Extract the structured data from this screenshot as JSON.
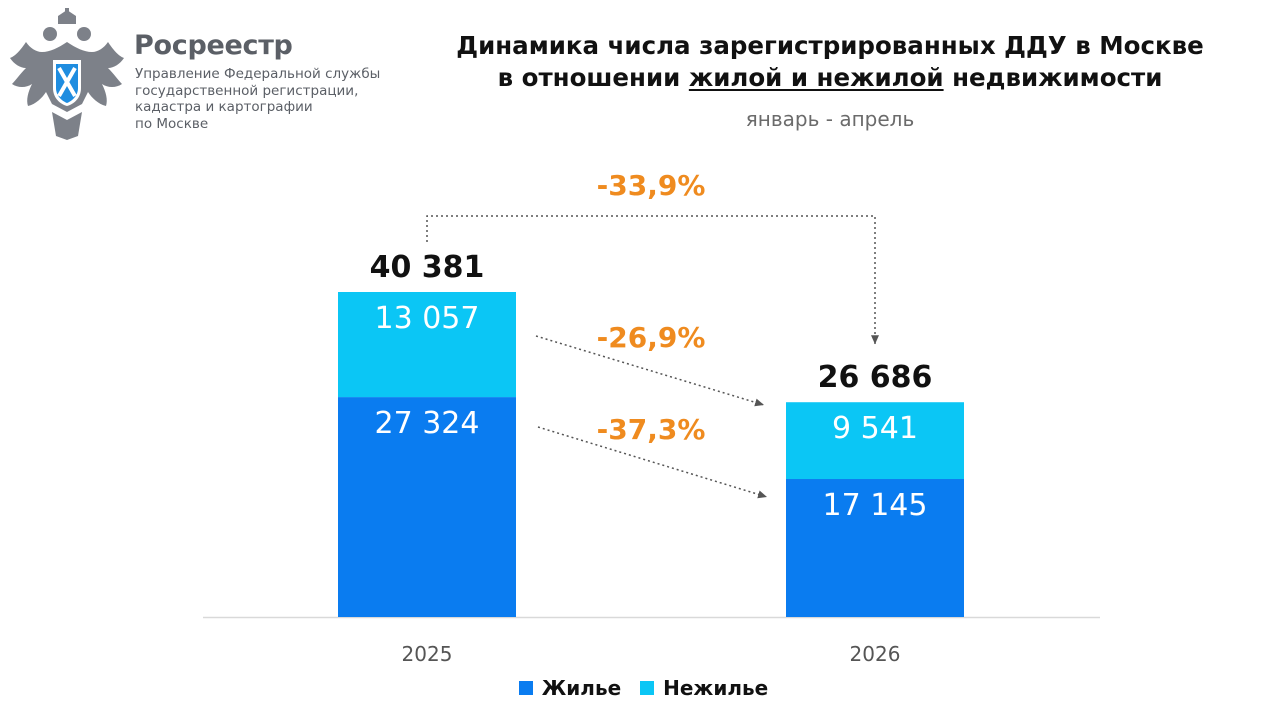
{
  "header": {
    "org_name": "Росреестр",
    "org_sub": [
      "Управление Федеральной службы",
      "государственной регистрации,",
      "кадастра и картографии",
      "по Москве"
    ],
    "title_line1": "Динамика числа зарегистрированных ДДУ в Москве",
    "title_line2_pre": "в отношении ",
    "title_line2_underlined": "жилой и нежилой",
    "title_line2_post": " недвижимости",
    "subtitle": "январь - апрель"
  },
  "colors": {
    "residential": "#0a7cf0",
    "nonresidential": "#0bc6f5",
    "change_labels": "#ef8b1f",
    "text": "#111111",
    "muted": "#5b5f66"
  },
  "chart_data": {
    "type": "bar",
    "stacked": true,
    "categories": [
      "2025",
      "2026"
    ],
    "series": [
      {
        "name": "Жилье",
        "values": [
          27324,
          17145
        ],
        "labels": [
          "27 324",
          "17 145"
        ]
      },
      {
        "name": "Нежилье",
        "values": [
          13057,
          9541
        ],
        "labels": [
          "13 057",
          "9 541"
        ]
      }
    ],
    "totals": [
      40381,
      26686
    ],
    "total_labels": [
      "40 381",
      "26 686"
    ],
    "changes": {
      "total": "-33,9%",
      "nonresidential": "-26,9%",
      "residential": "-37,3%"
    },
    "ylim": [
      0,
      40381
    ],
    "legend_position": "bottom",
    "grid": false
  }
}
